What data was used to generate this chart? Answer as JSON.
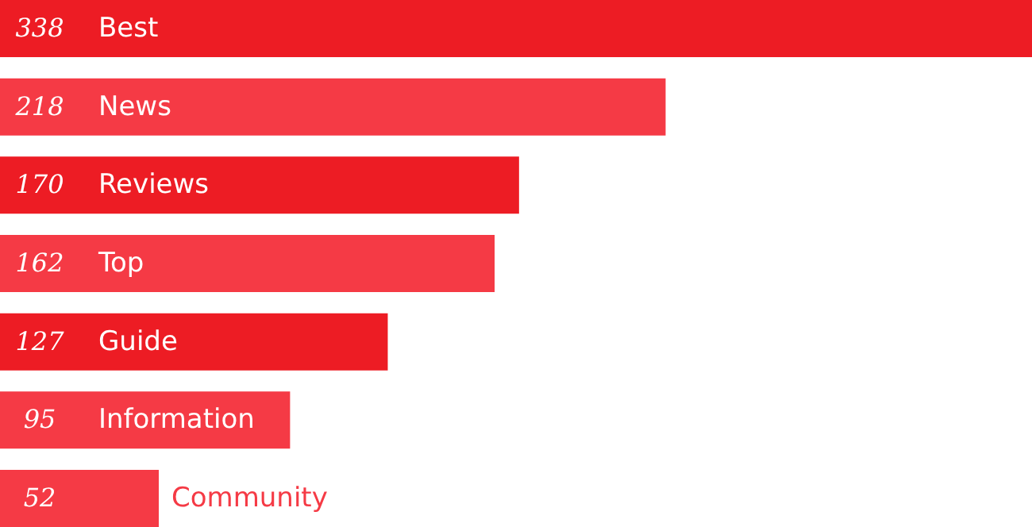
{
  "chart_data": {
    "type": "bar",
    "orientation": "horizontal",
    "categories": [
      "Best",
      "News",
      "Reviews",
      "Top",
      "Guide",
      "Information",
      "Community"
    ],
    "values": [
      338,
      218,
      170,
      162,
      127,
      95,
      52
    ],
    "colors": [
      "#ed1c24",
      "#f53a45",
      "#ed1c24",
      "#f53a45",
      "#ed1c24",
      "#f53a45",
      "#f53a45"
    ],
    "data_labels": true,
    "tick_labels": false
  }
}
